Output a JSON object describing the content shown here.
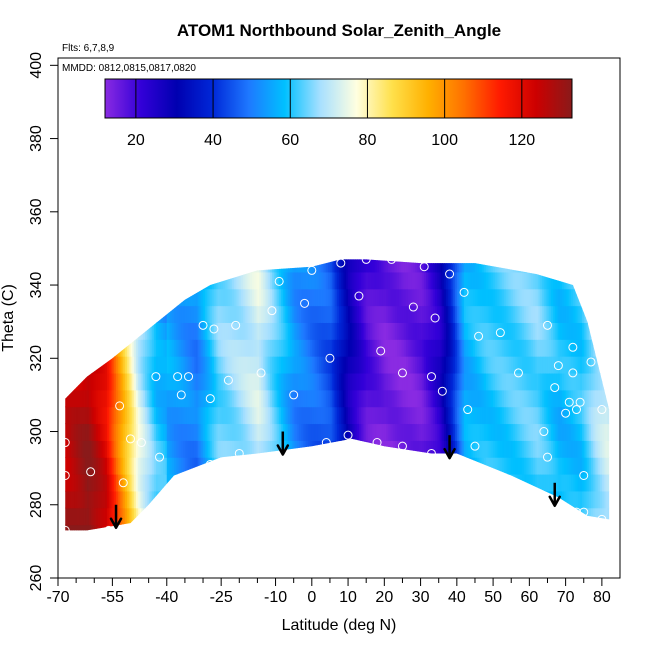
{
  "chart_data": {
    "type": "heatmap",
    "title": "ATOM1 Northbound Solar_Zenith_Angle",
    "flights_note": "Flts: 6,7,8,9",
    "dates_note": "MMDD: 0812,0815,0817,0820",
    "xlabel": "Latitude (deg N)",
    "ylabel": "Theta (C)",
    "xlim": [
      -70,
      85
    ],
    "ylim": [
      260,
      402
    ],
    "x_tick_labels": [
      "-70",
      "-55",
      "-40",
      "-25",
      "-10",
      "0",
      "10",
      "20",
      "30",
      "40",
      "50",
      "60",
      "70",
      "80"
    ],
    "x_tick_values": [
      -70,
      -55,
      -40,
      -25,
      -10,
      0,
      10,
      20,
      30,
      40,
      50,
      60,
      70,
      80
    ],
    "x_minor_ticks": [
      -65,
      -60,
      -50,
      -45,
      -35,
      -30,
      -20,
      -15,
      -5,
      5,
      15,
      25,
      35,
      45,
      55,
      65,
      75
    ],
    "y_tick_labels": [
      "260",
      "280",
      "300",
      "320",
      "340",
      "360",
      "380",
      "400"
    ],
    "y_tick_values": [
      260,
      280,
      300,
      320,
      340,
      360,
      380,
      400
    ],
    "colorbar": {
      "range": [
        12,
        133
      ],
      "tick_labels": [
        "20",
        "40",
        "60",
        "80",
        "100",
        "120"
      ],
      "tick_values": [
        20,
        40,
        60,
        80,
        100,
        120
      ],
      "colors": [
        "#8a2be2",
        "#3300d8",
        "#0000b0",
        "#0028d8",
        "#1e78ff",
        "#00c0ff",
        "#a8e0ff",
        "#ffffe0",
        "#ffe04a",
        "#ffb000",
        "#ff7000",
        "#ff1a00",
        "#cc0000",
        "#8a1a1a"
      ]
    },
    "field_control_points": [
      {
        "lat": -68,
        "value": 122
      },
      {
        "lat": -62,
        "value": 128
      },
      {
        "lat": -57,
        "value": 118
      },
      {
        "lat": -52,
        "value": 92
      },
      {
        "lat": -48,
        "value": 72
      },
      {
        "lat": -43,
        "value": 58
      },
      {
        "lat": -38,
        "value": 54
      },
      {
        "lat": -32,
        "value": 50
      },
      {
        "lat": -26,
        "value": 64
      },
      {
        "lat": -20,
        "value": 68
      },
      {
        "lat": -15,
        "value": 72
      },
      {
        "lat": -10,
        "value": 62
      },
      {
        "lat": -5,
        "value": 52
      },
      {
        "lat": 0,
        "value": 48
      },
      {
        "lat": 5,
        "value": 44
      },
      {
        "lat": 10,
        "value": 28
      },
      {
        "lat": 15,
        "value": 18
      },
      {
        "lat": 20,
        "value": 14
      },
      {
        "lat": 25,
        "value": 14
      },
      {
        "lat": 30,
        "value": 16
      },
      {
        "lat": 35,
        "value": 24
      },
      {
        "lat": 38,
        "value": 36
      },
      {
        "lat": 42,
        "value": 56
      },
      {
        "lat": 48,
        "value": 60
      },
      {
        "lat": 55,
        "value": 62
      },
      {
        "lat": 62,
        "value": 64
      },
      {
        "lat": 68,
        "value": 58
      },
      {
        "lat": 74,
        "value": 60
      },
      {
        "lat": 78,
        "value": 68
      },
      {
        "lat": 81,
        "value": 72
      }
    ],
    "upper_boundary": [
      {
        "lat": -68,
        "theta": 309
      },
      {
        "lat": -62,
        "theta": 315
      },
      {
        "lat": -55,
        "theta": 320
      },
      {
        "lat": -45,
        "theta": 328
      },
      {
        "lat": -35,
        "theta": 336
      },
      {
        "lat": -28,
        "theta": 340
      },
      {
        "lat": -15,
        "theta": 344
      },
      {
        "lat": 0,
        "theta": 345
      },
      {
        "lat": 8,
        "theta": 347
      },
      {
        "lat": 15,
        "theta": 347
      },
      {
        "lat": 30,
        "theta": 346
      },
      {
        "lat": 45,
        "theta": 346
      },
      {
        "lat": 62,
        "theta": 343
      },
      {
        "lat": 72,
        "theta": 340
      },
      {
        "lat": 76,
        "theta": 330
      },
      {
        "lat": 80,
        "theta": 314
      },
      {
        "lat": 82,
        "theta": 306
      }
    ],
    "lower_boundary": [
      {
        "lat": 82,
        "theta": 276
      },
      {
        "lat": 76,
        "theta": 277
      },
      {
        "lat": 68,
        "theta": 282
      },
      {
        "lat": 55,
        "theta": 288
      },
      {
        "lat": 40,
        "theta": 294
      },
      {
        "lat": 33,
        "theta": 294
      },
      {
        "lat": 20,
        "theta": 296
      },
      {
        "lat": 11,
        "theta": 298
      },
      {
        "lat": 0,
        "theta": 296
      },
      {
        "lat": -15,
        "theta": 294
      },
      {
        "lat": -25,
        "theta": 293
      },
      {
        "lat": -38,
        "theta": 288
      },
      {
        "lat": -45,
        "theta": 280
      },
      {
        "lat": -50,
        "theta": 275
      },
      {
        "lat": -56,
        "theta": 274
      },
      {
        "lat": -62,
        "theta": 273
      },
      {
        "lat": -68,
        "theta": 273
      }
    ],
    "observations": [
      {
        "lat": -68,
        "theta": 297
      },
      {
        "lat": -68,
        "theta": 288
      },
      {
        "lat": -68,
        "theta": 273
      },
      {
        "lat": -61,
        "theta": 289
      },
      {
        "lat": -56,
        "theta": 273
      },
      {
        "lat": -53,
        "theta": 307
      },
      {
        "lat": -52,
        "theta": 286
      },
      {
        "lat": -50,
        "theta": 298
      },
      {
        "lat": -47,
        "theta": 297
      },
      {
        "lat": -43,
        "theta": 315
      },
      {
        "lat": -42,
        "theta": 293
      },
      {
        "lat": -37,
        "theta": 315
      },
      {
        "lat": -36,
        "theta": 310
      },
      {
        "lat": -34,
        "theta": 315
      },
      {
        "lat": -32,
        "theta": 288
      },
      {
        "lat": -30,
        "theta": 329
      },
      {
        "lat": -28,
        "theta": 309
      },
      {
        "lat": -28,
        "theta": 291
      },
      {
        "lat": -27,
        "theta": 328
      },
      {
        "lat": -23,
        "theta": 314
      },
      {
        "lat": -21,
        "theta": 329
      },
      {
        "lat": -20,
        "theta": 294
      },
      {
        "lat": -14,
        "theta": 316
      },
      {
        "lat": -11,
        "theta": 333
      },
      {
        "lat": -9,
        "theta": 341
      },
      {
        "lat": -5,
        "theta": 310
      },
      {
        "lat": -2,
        "theta": 335
      },
      {
        "lat": 0,
        "theta": 344
      },
      {
        "lat": 4,
        "theta": 297
      },
      {
        "lat": 5,
        "theta": 320
      },
      {
        "lat": 8,
        "theta": 346
      },
      {
        "lat": 10,
        "theta": 299
      },
      {
        "lat": 13,
        "theta": 337
      },
      {
        "lat": 15,
        "theta": 347
      },
      {
        "lat": 18,
        "theta": 297
      },
      {
        "lat": 19,
        "theta": 322
      },
      {
        "lat": 22,
        "theta": 347
      },
      {
        "lat": 25,
        "theta": 296
      },
      {
        "lat": 25,
        "theta": 316
      },
      {
        "lat": 28,
        "theta": 334
      },
      {
        "lat": 31,
        "theta": 345
      },
      {
        "lat": 33,
        "theta": 315
      },
      {
        "lat": 33,
        "theta": 294
      },
      {
        "lat": 34,
        "theta": 331
      },
      {
        "lat": 36,
        "theta": 311
      },
      {
        "lat": 38,
        "theta": 343
      },
      {
        "lat": 42,
        "theta": 338
      },
      {
        "lat": 43,
        "theta": 306
      },
      {
        "lat": 45,
        "theta": 296
      },
      {
        "lat": 46,
        "theta": 326
      },
      {
        "lat": 52,
        "theta": 327
      },
      {
        "lat": 57,
        "theta": 316
      },
      {
        "lat": 64,
        "theta": 300
      },
      {
        "lat": 65,
        "theta": 293
      },
      {
        "lat": 65,
        "theta": 329
      },
      {
        "lat": 67,
        "theta": 312
      },
      {
        "lat": 68,
        "theta": 318
      },
      {
        "lat": 70,
        "theta": 305
      },
      {
        "lat": 71,
        "theta": 308
      },
      {
        "lat": 72,
        "theta": 323
      },
      {
        "lat": 72,
        "theta": 316
      },
      {
        "lat": 73,
        "theta": 306
      },
      {
        "lat": 73,
        "theta": 278
      },
      {
        "lat": 74,
        "theta": 308
      },
      {
        "lat": 75,
        "theta": 288
      },
      {
        "lat": 75,
        "theta": 278
      },
      {
        "lat": 77,
        "theta": 319
      },
      {
        "lat": 80,
        "theta": 306
      },
      {
        "lat": 80,
        "theta": 276
      }
    ],
    "arrows": [
      {
        "lat": -54,
        "theta": 280
      },
      {
        "lat": -8,
        "theta": 300
      },
      {
        "lat": 38,
        "theta": 299
      },
      {
        "lat": 67,
        "theta": 286
      }
    ]
  }
}
